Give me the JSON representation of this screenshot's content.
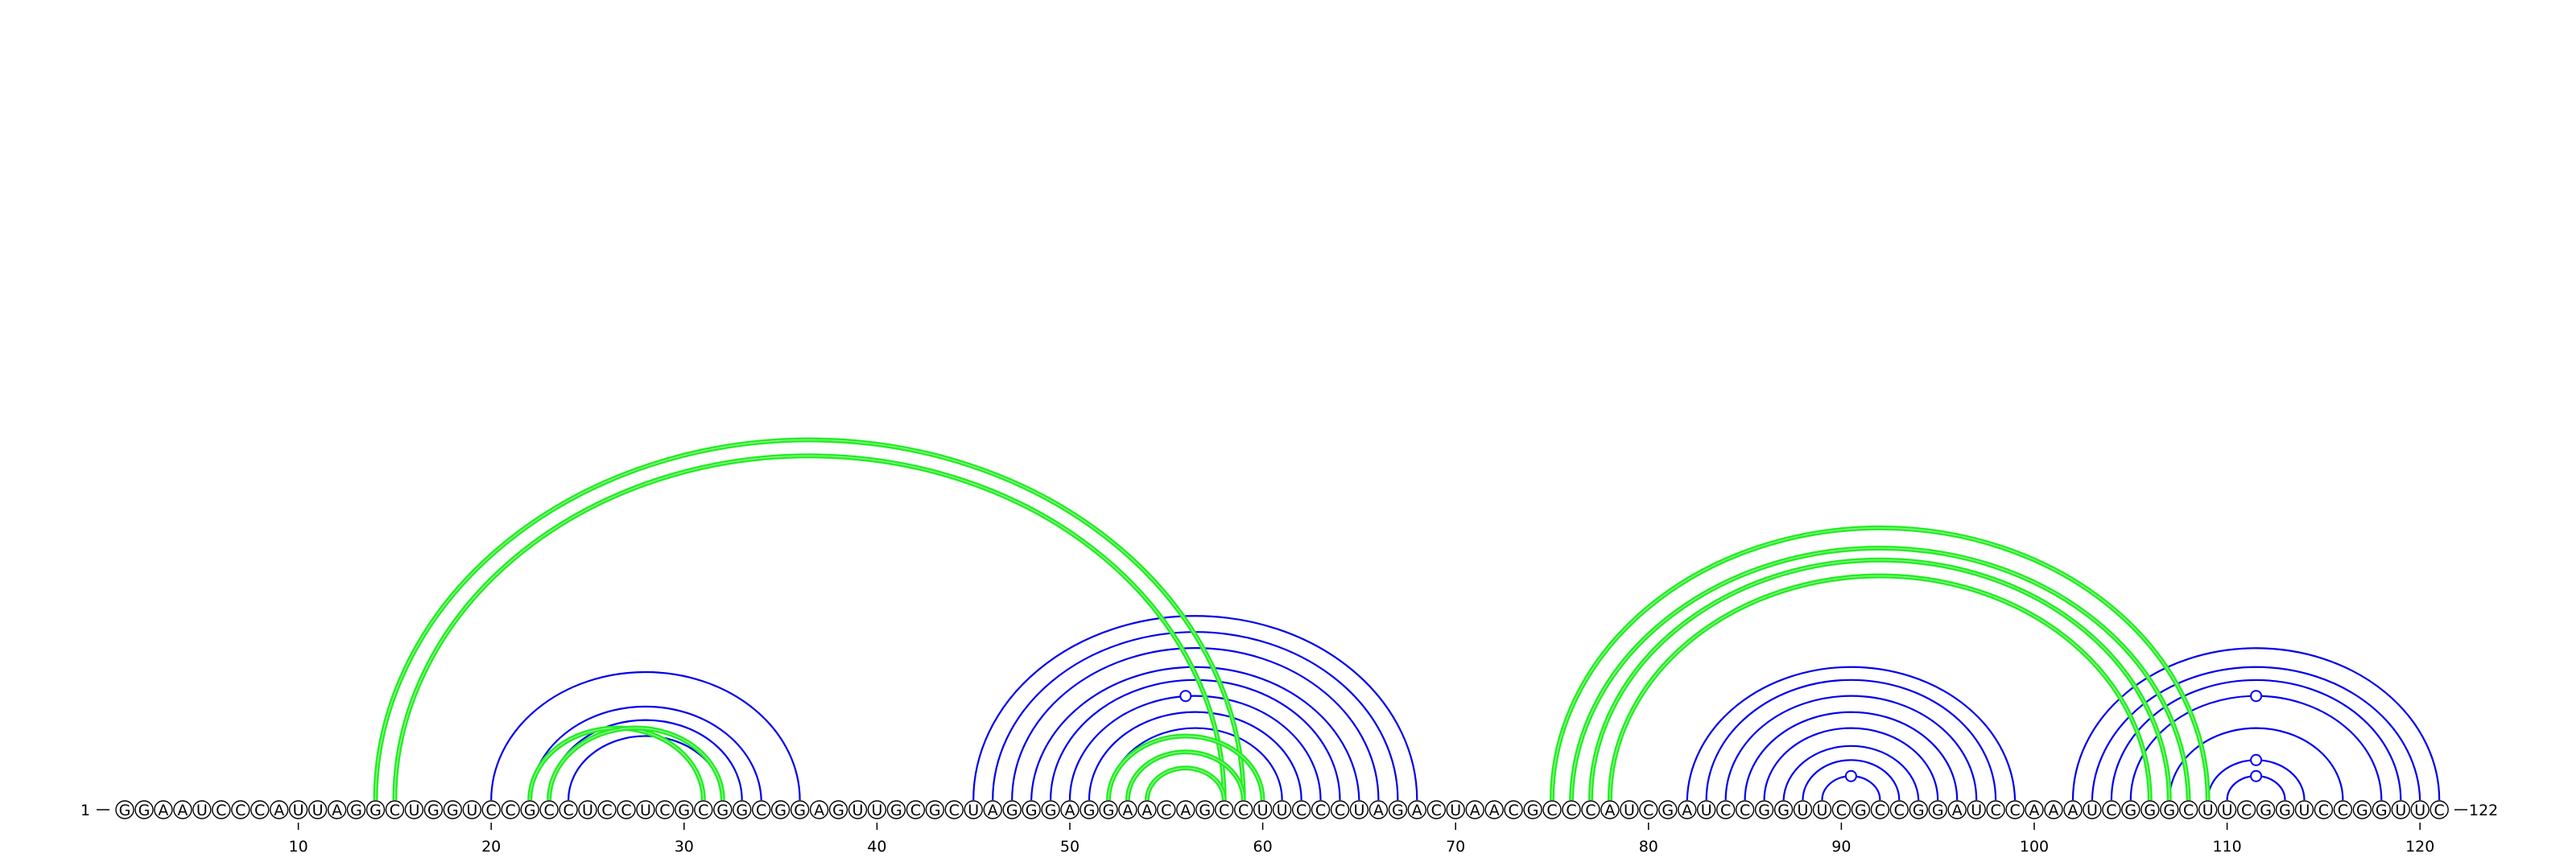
{
  "diagram": {
    "type": "rna-arc-diagram",
    "sequence": "GGAAUCCCAUUAGGCUGGUCCGCCUCCUCGCGGCGGAGUUGCGCUAGGGAGGAACAGCCUUCCCUAGACUAACGCCCAUCGAUCCGGUUCGCCGGAUCCAAAUCGGGCUUCGGUCCGGUUC",
    "start_label": "1",
    "end_label": "122",
    "ticks": [
      "10",
      "20",
      "30",
      "40",
      "50",
      "60",
      "70",
      "80",
      "90",
      "100",
      "110",
      "120"
    ],
    "colors": {
      "helix_pairs": "#0000ee",
      "pseudoknot_pairs": "#22ee22",
      "nucleotide_outline": "#000000"
    },
    "blue_pairs": [
      [
        20,
        36
      ],
      [
        22,
        34
      ],
      [
        23,
        33
      ],
      [
        24,
        32
      ],
      [
        45,
        68
      ],
      [
        46,
        67
      ],
      [
        47,
        66
      ],
      [
        48,
        65
      ],
      [
        49,
        64
      ],
      [
        50,
        63
      ],
      [
        51,
        62
      ],
      [
        52,
        61
      ],
      [
        82,
        99
      ],
      [
        83,
        98
      ],
      [
        84,
        97
      ],
      [
        85,
        96
      ],
      [
        86,
        95
      ],
      [
        87,
        94
      ],
      [
        88,
        93
      ],
      [
        89,
        92
      ],
      [
        102,
        121
      ],
      [
        103,
        120
      ],
      [
        104,
        119
      ],
      [
        105,
        118
      ],
      [
        107,
        116
      ],
      [
        109,
        114
      ],
      [
        110,
        113
      ]
    ],
    "green_pairs": [
      [
        14,
        59
      ],
      [
        15,
        58
      ],
      [
        22,
        31
      ],
      [
        23,
        32
      ],
      [
        52,
        60
      ],
      [
        53,
        59
      ],
      [
        54,
        58
      ],
      [
        75,
        109
      ],
      [
        76,
        108
      ],
      [
        77,
        107
      ],
      [
        78,
        106
      ]
    ],
    "markers": [
      {
        "pos": 56,
        "arc": [
          50,
          63
        ]
      },
      {
        "pos": 90.5,
        "arc": [
          89,
          92
        ]
      },
      {
        "pos": 111.5,
        "arc": [
          105,
          118
        ]
      },
      {
        "pos": 111.5,
        "arc": [
          109,
          114
        ]
      },
      {
        "pos": 111.5,
        "arc": [
          110,
          113
        ]
      }
    ]
  }
}
